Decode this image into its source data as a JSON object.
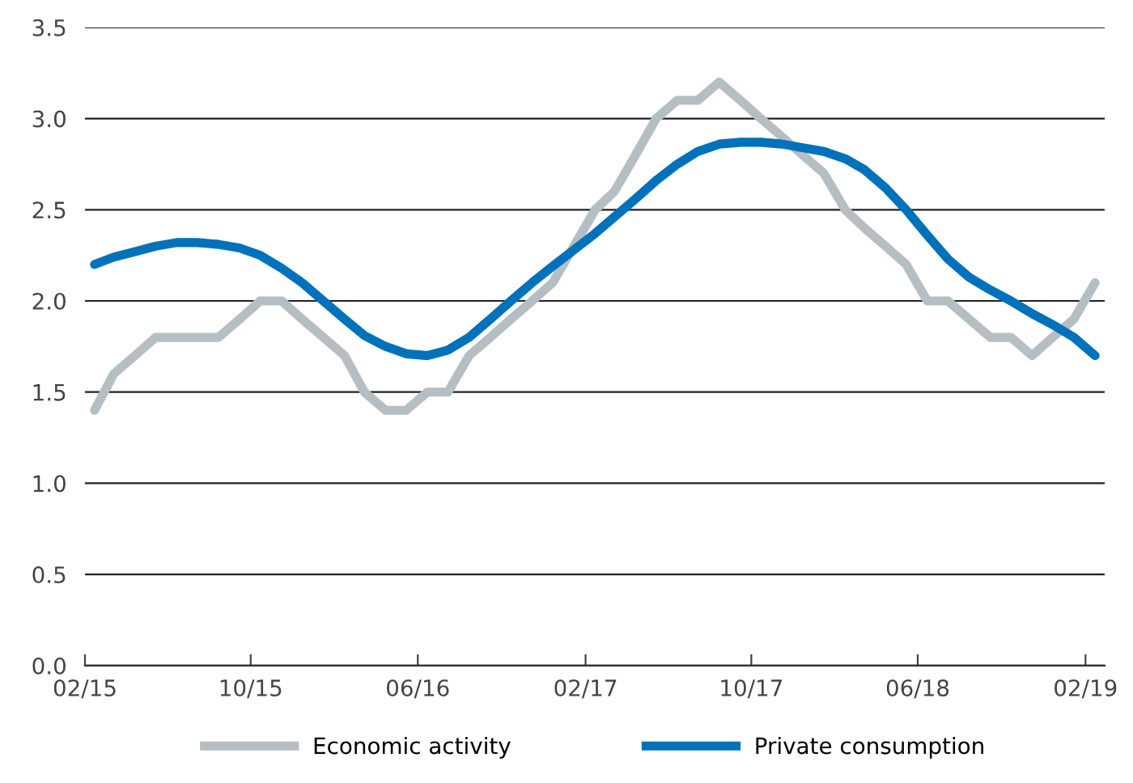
{
  "chart_data": {
    "type": "line",
    "x": [
      "2015-02-15",
      "2015-03-15",
      "2015-04-15",
      "2015-05-15",
      "2015-06-15",
      "2015-07-15",
      "2015-08-15",
      "2015-09-15",
      "2015-10-15",
      "2015-11-15",
      "2015-12-15",
      "2016-01-15",
      "2016-02-15",
      "2016-03-15",
      "2016-04-15",
      "2016-05-15",
      "2016-06-15",
      "2016-07-15",
      "2016-08-15",
      "2016-09-15",
      "2016-10-15",
      "2016-11-15",
      "2016-12-15",
      "2017-01-15",
      "2017-02-15",
      "2017-03-15",
      "2017-04-15",
      "2017-05-15",
      "2017-06-15",
      "2017-07-15",
      "2017-08-15",
      "2017-09-15",
      "2017-10-15",
      "2017-11-15",
      "2017-12-15",
      "2018-01-15",
      "2018-02-15",
      "2018-03-15",
      "2018-04-15",
      "2018-05-15",
      "2018-06-15",
      "2018-07-15",
      "2018-08-15",
      "2018-09-15",
      "2018-10-15",
      "2018-11-15",
      "2018-12-15",
      "2019-01-15",
      "2019-02-15"
    ],
    "series": [
      {
        "name": "Economic activity",
        "color": "#b5bfc3",
        "values": [
          1.4,
          1.6,
          1.7,
          1.8,
          1.8,
          1.8,
          1.8,
          1.9,
          2.0,
          2.0,
          1.9,
          1.8,
          1.7,
          1.5,
          1.4,
          1.4,
          1.5,
          1.5,
          1.7,
          1.8,
          1.9,
          2.0,
          2.1,
          2.3,
          2.5,
          2.6,
          2.8,
          3.0,
          3.1,
          3.1,
          3.2,
          3.1,
          3.0,
          2.9,
          2.8,
          2.7,
          2.5,
          2.4,
          2.3,
          2.2,
          2.0,
          2.0,
          1.9,
          1.8,
          1.8,
          1.7,
          1.8,
          1.9,
          2.1
        ]
      },
      {
        "name": "Private consumption",
        "color": "#0072bc",
        "values": [
          2.2,
          2.24,
          2.27,
          2.3,
          2.32,
          2.32,
          2.31,
          2.29,
          2.25,
          2.18,
          2.1,
          2.0,
          1.9,
          1.81,
          1.75,
          1.71,
          1.7,
          1.73,
          1.8,
          1.9,
          2.0,
          2.1,
          2.19,
          2.28,
          2.37,
          2.46,
          2.56,
          2.66,
          2.75,
          2.82,
          2.86,
          2.87,
          2.87,
          2.86,
          2.84,
          2.82,
          2.78,
          2.72,
          2.62,
          2.5,
          2.36,
          2.23,
          2.13,
          2.06,
          2.0,
          1.93,
          1.87,
          1.8,
          1.7
        ]
      }
    ],
    "xlim": [
      "2015-02-01",
      "2019-03-01"
    ],
    "xticks": [
      {
        "value": "2015-02-01",
        "label": "02/15"
      },
      {
        "value": "2015-10-01",
        "label": "10/15"
      },
      {
        "value": "2016-06-01",
        "label": "06/16"
      },
      {
        "value": "2017-02-01",
        "label": "02/17"
      },
      {
        "value": "2017-10-01",
        "label": "10/17"
      },
      {
        "value": "2018-06-01",
        "label": "06/18"
      },
      {
        "value": "2019-02-01",
        "label": "02/19"
      }
    ],
    "ylim": [
      0,
      3.5
    ],
    "yticks": [
      {
        "value": 0,
        "label": "0.0"
      },
      {
        "value": 0.5,
        "label": "0.5"
      },
      {
        "value": 1,
        "label": "1.0"
      },
      {
        "value": 1.5,
        "label": "1.5"
      },
      {
        "value": 2,
        "label": "2.0"
      },
      {
        "value": 2.5,
        "label": "2.5"
      },
      {
        "value": 3,
        "label": "3.0"
      },
      {
        "value": 3.5,
        "label": "3.5"
      }
    ],
    "grid": "y",
    "legend": "bottom",
    "marker": "none",
    "line_style": "solid"
  }
}
